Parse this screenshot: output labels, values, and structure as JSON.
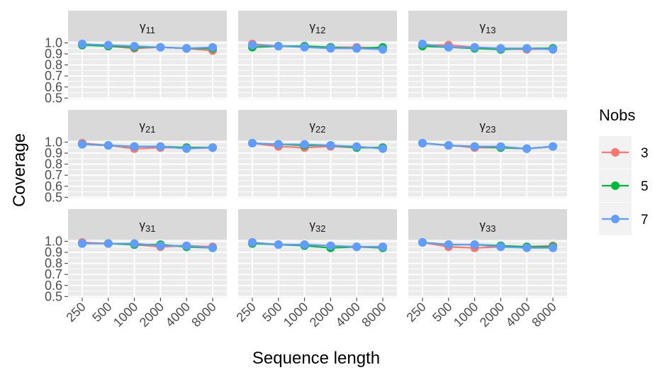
{
  "chart_data": {
    "type": "line",
    "xlabel": "Sequence length",
    "ylabel": "Coverage",
    "categories": [
      "250",
      "500",
      "1000",
      "2000",
      "4000",
      "8000"
    ],
    "y_ticks": [
      "0.5",
      "0.6",
      "0.7",
      "0.8",
      "0.9",
      "1.0"
    ],
    "ylim": [
      0.5,
      1.0
    ],
    "grid": true,
    "legend": {
      "title": "Nobs",
      "position": "right",
      "entries": [
        {
          "name": "3",
          "color": "#F8766D"
        },
        {
          "name": "5",
          "color": "#00BA38"
        },
        {
          "name": "7",
          "color": "#619CFF"
        }
      ]
    },
    "panels": [
      {
        "label": "γ",
        "sub": "11",
        "series": [
          {
            "name": "3",
            "values": [
              0.99,
              0.97,
              0.95,
              0.96,
              0.95,
              0.93
            ]
          },
          {
            "name": "5",
            "values": [
              0.98,
              0.97,
              0.96,
              0.96,
              0.95,
              0.95
            ]
          },
          {
            "name": "7",
            "values": [
              0.99,
              0.98,
              0.97,
              0.96,
              0.95,
              0.96
            ]
          }
        ]
      },
      {
        "label": "γ",
        "sub": "12",
        "series": [
          {
            "name": "3",
            "values": [
              0.99,
              0.97,
              0.97,
              0.96,
              0.96,
              0.95
            ]
          },
          {
            "name": "5",
            "values": [
              0.96,
              0.97,
              0.97,
              0.96,
              0.95,
              0.96
            ]
          },
          {
            "name": "7",
            "values": [
              0.98,
              0.97,
              0.96,
              0.95,
              0.95,
              0.94
            ]
          }
        ]
      },
      {
        "label": "γ",
        "sub": "13",
        "series": [
          {
            "name": "3",
            "values": [
              0.98,
              0.98,
              0.96,
              0.95,
              0.94,
              0.95
            ]
          },
          {
            "name": "5",
            "values": [
              0.97,
              0.96,
              0.95,
              0.94,
              0.95,
              0.95
            ]
          },
          {
            "name": "7",
            "values": [
              0.99,
              0.96,
              0.96,
              0.95,
              0.95,
              0.94
            ]
          }
        ]
      },
      {
        "label": "γ",
        "sub": "21",
        "series": [
          {
            "name": "3",
            "values": [
              0.99,
              0.97,
              0.94,
              0.95,
              0.95,
              0.95
            ]
          },
          {
            "name": "5",
            "values": [
              0.98,
              0.97,
              0.96,
              0.96,
              0.95,
              0.95
            ]
          },
          {
            "name": "7",
            "values": [
              0.98,
              0.97,
              0.96,
              0.96,
              0.94,
              0.95
            ]
          }
        ]
      },
      {
        "label": "γ",
        "sub": "22",
        "series": [
          {
            "name": "3",
            "values": [
              0.99,
              0.96,
              0.95,
              0.96,
              0.95,
              0.95
            ]
          },
          {
            "name": "5",
            "values": [
              0.99,
              0.98,
              0.97,
              0.97,
              0.95,
              0.95
            ]
          },
          {
            "name": "7",
            "values": [
              0.99,
              0.98,
              0.98,
              0.97,
              0.96,
              0.94
            ]
          }
        ]
      },
      {
        "label": "γ",
        "sub": "23",
        "series": [
          {
            "name": "3",
            "values": [
              0.99,
              0.97,
              0.95,
              0.95,
              0.94,
              0.96
            ]
          },
          {
            "name": "5",
            "values": [
              0.99,
              0.97,
              0.96,
              0.95,
              0.94,
              0.96
            ]
          },
          {
            "name": "7",
            "values": [
              0.99,
              0.97,
              0.96,
              0.96,
              0.94,
              0.96
            ]
          }
        ]
      },
      {
        "label": "γ",
        "sub": "31",
        "series": [
          {
            "name": "3",
            "values": [
              0.99,
              0.98,
              0.97,
              0.95,
              0.96,
              0.95
            ]
          },
          {
            "name": "5",
            "values": [
              0.98,
              0.98,
              0.97,
              0.97,
              0.95,
              0.94
            ]
          },
          {
            "name": "7",
            "values": [
              0.98,
              0.98,
              0.98,
              0.96,
              0.96,
              0.94
            ]
          }
        ]
      },
      {
        "label": "γ",
        "sub": "32",
        "series": [
          {
            "name": "3",
            "values": [
              0.99,
              0.97,
              0.97,
              0.96,
              0.95,
              0.95
            ]
          },
          {
            "name": "5",
            "values": [
              0.98,
              0.97,
              0.96,
              0.94,
              0.95,
              0.94
            ]
          },
          {
            "name": "7",
            "values": [
              0.99,
              0.97,
              0.97,
              0.96,
              0.95,
              0.95
            ]
          }
        ]
      },
      {
        "label": "γ",
        "sub": "33",
        "series": [
          {
            "name": "3",
            "values": [
              0.99,
              0.95,
              0.94,
              0.95,
              0.95,
              0.96
            ]
          },
          {
            "name": "5",
            "values": [
              0.99,
              0.97,
              0.97,
              0.96,
              0.95,
              0.95
            ]
          },
          {
            "name": "7",
            "values": [
              0.99,
              0.97,
              0.97,
              0.95,
              0.94,
              0.94
            ]
          }
        ]
      }
    ]
  }
}
